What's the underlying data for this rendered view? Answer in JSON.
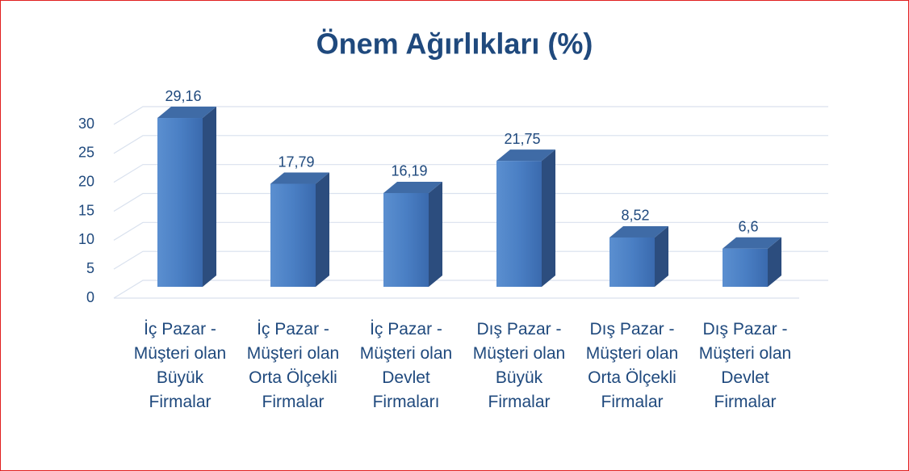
{
  "chart_data": {
    "type": "bar3d",
    "title": "Önem Ağırlıkları (%)",
    "categories": [
      "İç Pazar - Müşteri olan Büyük Firmalar",
      "İç Pazar - Müşteri olan Orta Ölçekli Firmalar",
      "İç Pazar - Müşteri olan Devlet Firmaları",
      "Dış Pazar - Müşteri olan Büyük Firmalar",
      "Dış Pazar - Müşteri olan Orta Ölçekli Firmalar",
      "Dış Pazar - Müşteri olan Devlet Firmalar"
    ],
    "values": [
      29.16,
      17.79,
      16.19,
      21.75,
      8.52,
      6.6
    ],
    "value_labels": [
      "29,16",
      "17,79",
      "16,19",
      "21,75",
      "8,52",
      "6,6"
    ],
    "color": "#4f81bd",
    "ylim": [
      0,
      30
    ],
    "yticks": [
      0,
      5,
      10,
      15,
      20,
      25,
      30
    ],
    "grid": true
  }
}
